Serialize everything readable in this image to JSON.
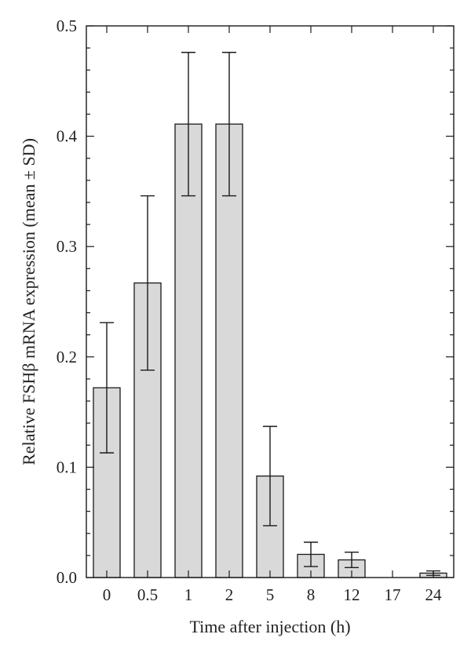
{
  "chart_data": {
    "type": "bar",
    "title": "",
    "xlabel": "Time after injection (h)",
    "ylabel": "Relative FSHβ mRNA expression (mean ± SD)",
    "ylim": [
      0,
      0.5
    ],
    "yticks": [
      "0.0",
      "0.1",
      "0.2",
      "0.3",
      "0.4",
      "0.5"
    ],
    "categories": [
      "0",
      "0.5",
      "1",
      "2",
      "5",
      "8",
      "12",
      "17",
      "24"
    ],
    "values": [
      0.172,
      0.267,
      0.411,
      0.411,
      0.092,
      0.021,
      0.016,
      0.0,
      0.004
    ],
    "errors": [
      0.059,
      0.079,
      0.065,
      0.065,
      0.045,
      0.011,
      0.007,
      0.0,
      0.002
    ],
    "grid": false,
    "bar_color": "#d9d9d9",
    "edge_color": "#1a1a1a"
  }
}
